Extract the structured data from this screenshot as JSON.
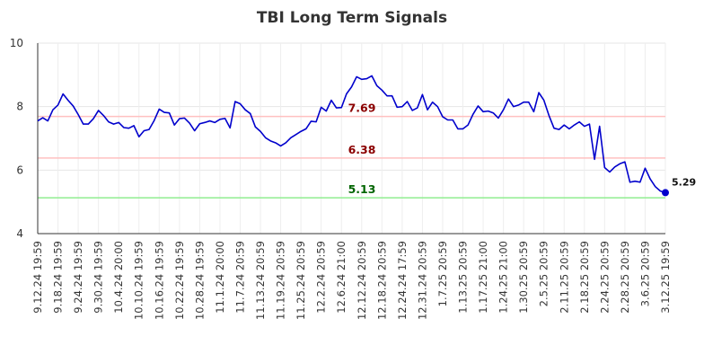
{
  "chart_data": {
    "type": "line",
    "title": "TBI Long Term Signals",
    "xlabel": "",
    "ylabel": "",
    "ylim": [
      4,
      10
    ],
    "yticks": [
      4,
      6,
      8,
      10
    ],
    "grid": true,
    "x_tick_labels": [
      "9.12.24 19:59",
      "9.18.24 19:59",
      "9.24.24 19:59",
      "9.30.24 19:59",
      "10.4.24 20:00",
      "10.10.24 19:59",
      "10.16.24 19:59",
      "10.22.24 19:59",
      "10.28.24 19:59",
      "11.1.24 20:00",
      "11.7.24 20:59",
      "11.13.24 20:59",
      "11.19.24 20:59",
      "11.25.24 20:59",
      "12.2.24 20:59",
      "12.6.24 21:00",
      "12.12.24 20:59",
      "12.18.24 20:59",
      "12.24.24 17:59",
      "12.31.24 20:59",
      "1.7.25 20:59",
      "1.13.25 20:59",
      "1.17.25 21:00",
      "1.24.25 21:00",
      "1.30.25 20:59",
      "2.5.25 20:59",
      "2.11.25 20:59",
      "2.18.25 20:59",
      "2.24.25 20:59",
      "2.28.25 20:59",
      "3.6.25 20:59",
      "3.12.25 19:59"
    ],
    "series": [
      {
        "color": "#0000cc",
        "values": [
          7.55,
          7.65,
          7.55,
          7.9,
          8.05,
          8.4,
          8.2,
          8.02,
          7.75,
          7.45,
          7.45,
          7.62,
          7.88,
          7.72,
          7.52,
          7.45,
          7.5,
          7.34,
          7.32,
          7.4,
          7.05,
          7.24,
          7.28,
          7.56,
          7.92,
          7.82,
          7.8,
          7.42,
          7.62,
          7.64,
          7.48,
          7.24,
          7.46,
          7.5,
          7.55,
          7.5,
          7.6,
          7.63,
          7.33,
          8.16,
          8.09,
          7.9,
          7.78,
          7.36,
          7.22,
          7.02,
          6.92,
          6.86,
          6.76,
          6.86,
          7.02,
          7.12,
          7.22,
          7.3,
          7.54,
          7.52,
          7.98,
          7.86,
          8.2,
          7.96,
          7.97,
          8.4,
          8.62,
          8.94,
          8.86,
          8.88,
          8.97,
          8.66,
          8.52,
          8.34,
          8.34,
          7.98,
          8.0,
          8.16,
          7.88,
          7.96,
          8.38,
          7.9,
          8.14,
          8.0,
          7.68,
          7.58,
          7.58,
          7.3,
          7.3,
          7.42,
          7.76,
          8.02,
          7.84,
          7.86,
          7.8,
          7.64,
          7.9,
          8.24,
          8.0,
          8.05,
          8.14,
          8.14,
          7.84,
          8.44,
          8.2,
          7.72,
          7.32,
          7.28,
          7.42,
          7.3,
          7.42,
          7.52,
          7.38,
          7.45,
          6.34,
          7.38,
          6.08,
          5.94,
          6.1,
          6.2,
          6.26,
          5.62,
          5.65,
          5.62,
          6.06,
          5.72,
          5.48,
          5.34,
          5.29
        ]
      }
    ],
    "reference_lines": [
      {
        "value": 7.69,
        "label": "7.69",
        "line_color": "#ffc0c0",
        "label_color": "#8b0000"
      },
      {
        "value": 6.38,
        "label": "6.38",
        "line_color": "#ffc0c0",
        "label_color": "#8b0000"
      },
      {
        "value": 5.13,
        "label": "5.13",
        "line_color": "#90ee90",
        "label_color": "#006400"
      }
    ],
    "last_point": {
      "value": 5.29,
      "label": "5.29",
      "color": "#0000cc"
    }
  }
}
